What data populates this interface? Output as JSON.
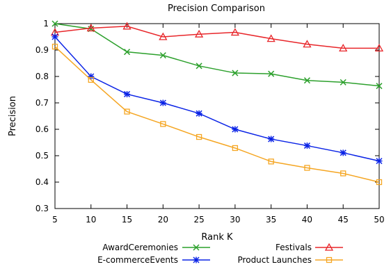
{
  "chart_data": {
    "type": "line",
    "title": "Precision Comparison",
    "xlabel": "Rank K",
    "ylabel": "Precision",
    "x": [
      5,
      10,
      15,
      20,
      25,
      30,
      35,
      40,
      45,
      50
    ],
    "xlim": [
      5,
      50
    ],
    "ylim": [
      0.3,
      1.0
    ],
    "xticks": [
      "5",
      "10",
      "15",
      "20",
      "25",
      "30",
      "35",
      "40",
      "45",
      "50"
    ],
    "yticks": [
      "0.3",
      "0.4",
      "0.5",
      "0.6",
      "0.7",
      "0.8",
      "0.9",
      "1"
    ],
    "grid": false,
    "legend_position": "bottom",
    "series": [
      {
        "name": "AwardCeremonies",
        "color": "#2ca02c",
        "marker": "x",
        "values": [
          1.0,
          0.98,
          0.893,
          0.88,
          0.84,
          0.813,
          0.81,
          0.785,
          0.778,
          0.764
        ]
      },
      {
        "name": "Festivals",
        "color": "#e8262a",
        "marker": "triangle",
        "values": [
          0.967,
          0.983,
          0.99,
          0.95,
          0.96,
          0.967,
          0.943,
          0.922,
          0.907,
          0.907
        ]
      },
      {
        "name": "E-commerceEvents",
        "color": "#0a23e6",
        "marker": "asterisk",
        "values": [
          0.95,
          0.8,
          0.733,
          0.7,
          0.66,
          0.6,
          0.563,
          0.538,
          0.511,
          0.48
        ]
      },
      {
        "name": "Product Launches",
        "color": "#f5a623",
        "marker": "square",
        "values": [
          0.913,
          0.787,
          0.667,
          0.62,
          0.571,
          0.529,
          0.478,
          0.454,
          0.433,
          0.4
        ]
      }
    ]
  }
}
